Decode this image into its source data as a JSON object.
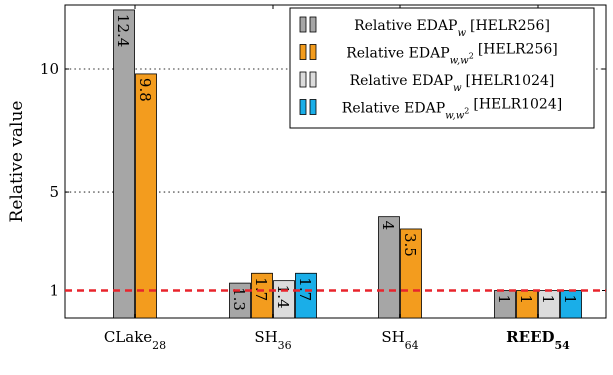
{
  "chart_data": {
    "type": "bar",
    "ylabel": "Relative value",
    "xlabel": "",
    "title": "",
    "ylim": [
      0,
      14
    ],
    "yticks": [
      1,
      5,
      10
    ],
    "grid": "dotted horizontal at y ticks",
    "reference_line": {
      "y": 1,
      "color": "#e8242c",
      "style": "dashed"
    },
    "categories": [
      {
        "base": "CLake",
        "sub": "28",
        "bold": false
      },
      {
        "base": "SH",
        "sub": "36",
        "bold": false
      },
      {
        "base": "SH",
        "sub": "64",
        "bold": false
      },
      {
        "base": "REED",
        "sub": "54",
        "bold": true
      }
    ],
    "series": [
      {
        "legend_base": "Relative EDAP",
        "legend_sub": "w",
        "legend_sup": "",
        "legend_suffix": "[HELR256]",
        "color": "#a6a6a6",
        "values": [
          12.4,
          1.3,
          4,
          1
        ]
      },
      {
        "legend_base": "Relative EDAP",
        "legend_sub": "w,w",
        "legend_sup": "2",
        "legend_suffix": "[HELR256]",
        "color": "#f39c1e",
        "values": [
          9.8,
          1.7,
          3.5,
          1
        ]
      },
      {
        "legend_base": "Relative EDAP",
        "legend_sub": "w",
        "legend_sup": "",
        "legend_suffix": "[HELR1024]",
        "color": "#dcdcdc",
        "values": [
          null,
          1.4,
          null,
          1
        ]
      },
      {
        "legend_base": "Relative EDAP",
        "legend_sub": "w,w",
        "legend_sup": "2",
        "legend_suffix": "[HELR1024]",
        "color": "#1aaee8",
        "values": [
          null,
          1.7,
          null,
          1
        ]
      }
    ],
    "legend_position": "top-right",
    "bar_labels": true
  }
}
